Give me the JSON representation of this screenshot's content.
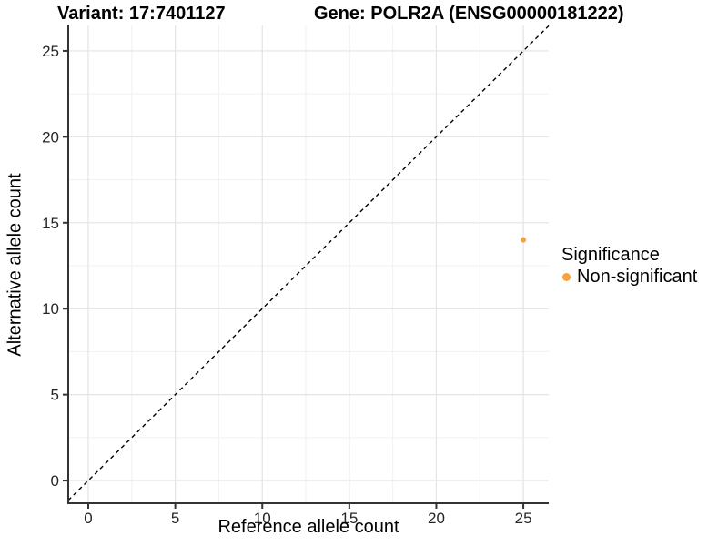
{
  "chart_data": {
    "type": "scatter",
    "title_left": "Variant: 17:7401127",
    "title_right": "Gene: POLR2A (ENSG00000181222)",
    "xlabel": "Reference allele count",
    "ylabel": "Alternative allele count",
    "x_ticks": [
      0,
      5,
      10,
      15,
      20,
      25
    ],
    "y_ticks": [
      0,
      5,
      10,
      15,
      20,
      25
    ],
    "x_minor_ticks": [
      2.5,
      7.5,
      12.5,
      17.5,
      22.5
    ],
    "y_minor_ticks": [
      2.5,
      7.5,
      12.5,
      17.5,
      22.5
    ],
    "xlim": [
      -1.15,
      26.46
    ],
    "ylim": [
      -1.32,
      26.48
    ],
    "grid": "major+minor",
    "identity_line": {
      "equation": "y = x",
      "style": "dashed",
      "color": "#000000"
    },
    "series": [
      {
        "name": "Non-significant",
        "color": "#F9A13B",
        "points": [
          {
            "x": 25,
            "y": 14
          }
        ]
      }
    ],
    "legend": {
      "title": "Significance",
      "position": "right",
      "items": [
        {
          "label": "Non-significant",
          "color": "#F9A13B"
        }
      ]
    },
    "colors": {
      "axis": "#333333",
      "tick_label": "#262626",
      "grid_major": "#E4E4E4",
      "grid_minor": "#F1F1F1",
      "background": "#FFFFFF"
    }
  }
}
